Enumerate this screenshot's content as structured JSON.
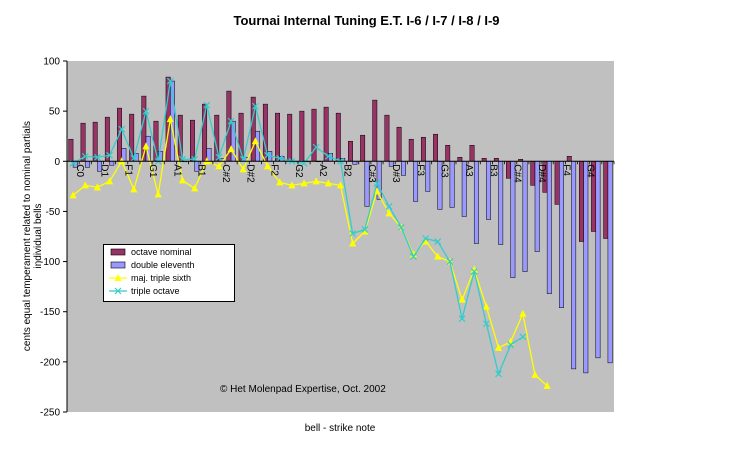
{
  "chart_data": {
    "type": "bar",
    "title": "Tournai Internal Tuning E.T. I-6 / I-7 / I-8 / I-9",
    "xlabel": "bell - strike note",
    "ylabel_line1": "cents equal temperament related to nominal partials",
    "ylabel_line2": "individual bells",
    "ylim": [
      -250,
      100
    ],
    "yticks": [
      100,
      50,
      0,
      -50,
      -100,
      -150,
      -200,
      -250
    ],
    "plot_background": "#c0c0c0",
    "grid": false,
    "legend_position": "left",
    "tick_labels": [
      "C0",
      "D1",
      "F1",
      "G1",
      "A1",
      "B1",
      "C#2",
      "D#2",
      "F2",
      "G2",
      "A2",
      "B2",
      "C#3",
      "D#3",
      "F3",
      "G3",
      "A3",
      "B3",
      "C#4",
      "D#4",
      "F4",
      "G4"
    ],
    "series": [
      {
        "name": "octave nominal",
        "kind": "bar",
        "color": "#993366",
        "values": [
          22,
          38,
          39,
          44,
          53,
          47,
          65,
          40,
          84,
          46,
          41,
          57,
          46,
          70,
          48,
          64,
          57,
          48,
          47,
          50,
          52,
          54,
          48,
          20,
          26,
          61,
          46,
          34,
          22,
          24,
          27,
          16,
          4,
          16,
          3,
          3,
          -17,
          2,
          -24,
          -31,
          -43,
          5,
          -80,
          -70,
          -77
        ]
      },
      {
        "name": "double eleventh",
        "kind": "bar",
        "color": "#9999ff",
        "values": [
          -6,
          -6,
          -10,
          -4,
          13,
          8,
          25,
          10,
          80,
          0,
          -10,
          13,
          3,
          40,
          4,
          30,
          10,
          5,
          0,
          0,
          0,
          8,
          3,
          -3,
          -45,
          -38,
          -5,
          -14,
          -40,
          -30,
          -48,
          -46,
          -55,
          -82,
          -58,
          -83,
          -116,
          -110,
          -90,
          -132,
          -146,
          -207,
          -211,
          -196,
          -201
        ]
      },
      {
        "name": "maj. triple sixth",
        "kind": "line",
        "color": "#ffff00",
        "values": [
          -34,
          -24,
          -26,
          -20,
          0,
          -28,
          15,
          -33,
          42,
          -19,
          -27,
          0,
          -5,
          12,
          -8,
          20,
          -5,
          -21,
          -24,
          -22,
          -20,
          -22,
          -24,
          -82,
          -70,
          -30,
          -52,
          -66,
          -93,
          -80,
          -95,
          -100,
          -138,
          -108,
          -145,
          -186,
          -180,
          -152,
          -213,
          -224
        ]
      },
      {
        "name": "triple octave",
        "kind": "line",
        "color": "#33cccc",
        "values": [
          -2,
          5,
          4,
          6,
          32,
          3,
          50,
          0,
          80,
          2,
          2,
          56,
          4,
          40,
          2,
          55,
          6,
          3,
          0,
          -2,
          14,
          5,
          0,
          -72,
          -68,
          -22,
          -45,
          -66,
          -95,
          -77,
          -80,
          -100,
          -157,
          -110,
          -162,
          -212,
          -183,
          -175
        ]
      }
    ],
    "annotation": "© Het Molenpad Expertise, Oct. 2002"
  }
}
